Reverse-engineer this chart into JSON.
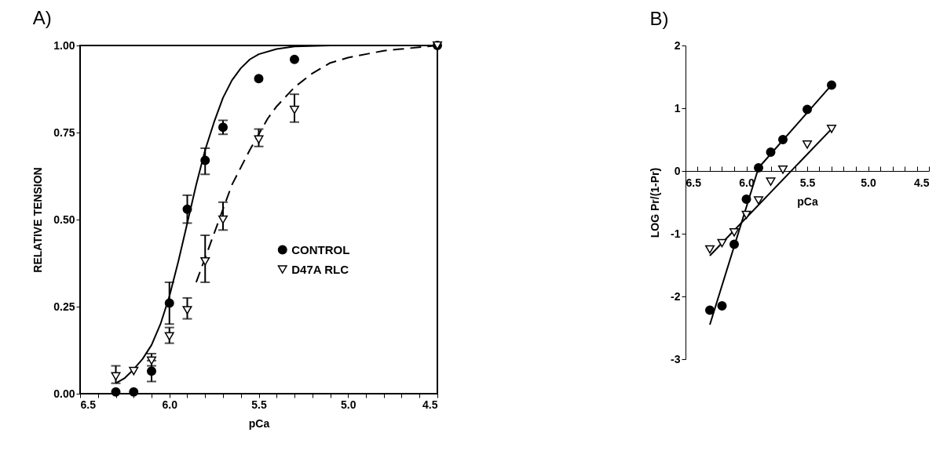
{
  "chart_data": [
    {
      "type": "scatter",
      "title": "A)",
      "xlabel": "pCa",
      "ylabel": "RELATIVE TENSION",
      "legend": "right",
      "xlim": [
        6.5,
        4.5
      ],
      "ylim": [
        0,
        1
      ],
      "xticks": [
        {
          "value": 6.5,
          "label": "6.5"
        },
        {
          "value": 6.4,
          "label": null
        },
        {
          "value": 6.3,
          "label": null
        },
        {
          "value": 6.2,
          "label": null
        },
        {
          "value": 6.1,
          "label": null
        },
        {
          "value": 6,
          "label": "6.0"
        },
        {
          "value": 5.9,
          "label": null
        },
        {
          "value": 5.8,
          "label": null
        },
        {
          "value": 5.7,
          "label": null
        },
        {
          "value": 5.6,
          "label": null
        },
        {
          "value": 5.5,
          "label": "5.5"
        },
        {
          "value": 5.4,
          "label": null
        },
        {
          "value": 5.3,
          "label": null
        },
        {
          "value": 5.2,
          "label": null
        },
        {
          "value": 5.1,
          "label": null
        },
        {
          "value": 5,
          "label": "5.0"
        },
        {
          "value": 4.9,
          "label": null
        },
        {
          "value": 4.8,
          "label": null
        },
        {
          "value": 4.7,
          "label": null
        },
        {
          "value": 4.6,
          "label": null
        },
        {
          "value": 4.5,
          "label": "4.5"
        }
      ],
      "yticks": [
        {
          "value": 0,
          "label": "0.00"
        },
        {
          "value": 0.25,
          "label": "0.25"
        },
        {
          "value": 0.5,
          "label": "0.50"
        },
        {
          "value": 0.75,
          "label": "0.75"
        },
        {
          "value": 1,
          "label": "1.00"
        }
      ],
      "series": [
        {
          "name": "CONTROL",
          "type": "scatter",
          "marker": "circle",
          "color": "#000000",
          "x": [
            6.3,
            6.2,
            6.1,
            6.0,
            5.9,
            5.8,
            5.7,
            5.5,
            5.3,
            4.5
          ],
          "values": [
            0.005,
            0.005,
            0.065,
            0.26,
            0.53,
            0.67,
            0.765,
            0.905,
            0.96,
            1.0
          ],
          "errors": [
            null,
            null,
            [
              0.035,
              0.095
            ],
            [
              0.2,
              0.32
            ],
            [
              0.49,
              0.57
            ],
            [
              0.63,
              0.705
            ],
            [
              0.745,
              0.785
            ],
            null,
            null,
            null
          ]
        },
        {
          "name": "D47A RLC",
          "type": "scatter",
          "marker": "triangle",
          "color": "#000000",
          "x": [
            6.3,
            6.2,
            6.1,
            6.0,
            5.9,
            5.8,
            5.7,
            5.5,
            5.3,
            4.5
          ],
          "values": [
            0.05,
            0.065,
            0.095,
            0.165,
            0.24,
            0.38,
            0.5,
            0.73,
            0.815,
            1.0
          ],
          "errors": [
            [
              0.03,
              0.08
            ],
            null,
            [
              0.08,
              0.115
            ],
            [
              0.145,
              0.19
            ],
            [
              0.215,
              0.275
            ],
            [
              0.32,
              0.455
            ],
            [
              0.47,
              0.55
            ],
            [
              0.71,
              0.76
            ],
            [
              0.78,
              0.86
            ],
            null
          ]
        },
        {
          "type": "line",
          "line_style": "solid",
          "color": "#000000",
          "x": [
            6.3,
            6.25,
            6.2,
            6.15,
            6.1,
            6.05,
            6.0,
            5.95,
            5.9,
            5.85,
            5.8,
            5.75,
            5.7,
            5.65,
            5.6,
            5.55,
            5.5,
            5.4,
            5.3,
            5.1,
            4.8,
            4.5
          ],
          "values": [
            0.03,
            0.045,
            0.07,
            0.1,
            0.14,
            0.2,
            0.28,
            0.38,
            0.49,
            0.6,
            0.7,
            0.78,
            0.85,
            0.9,
            0.935,
            0.96,
            0.975,
            0.99,
            0.997,
            1.0,
            1.0,
            1.0
          ]
        },
        {
          "type": "line",
          "line_style": "dashed",
          "color": "#000000",
          "x": [
            5.85,
            5.8,
            5.75,
            5.7,
            5.65,
            5.6,
            5.55,
            5.5,
            5.45,
            5.4,
            5.3,
            5.2,
            5.1,
            5.0,
            4.8,
            4.5
          ],
          "values": [
            0.32,
            0.39,
            0.46,
            0.53,
            0.6,
            0.65,
            0.7,
            0.745,
            0.79,
            0.825,
            0.88,
            0.92,
            0.95,
            0.965,
            0.985,
            1.0
          ]
        }
      ]
    },
    {
      "type": "scatter",
      "title": "B)",
      "xlabel": "pCa",
      "ylabel": "LOG Pr/(1-Pr)",
      "legend": "right",
      "xlim": [
        6.5,
        4.5
      ],
      "ylim": [
        -3,
        2
      ],
      "xticks": [
        {
          "value": 6.5,
          "label": "6.5"
        },
        {
          "value": 6.4,
          "label": null
        },
        {
          "value": 6.3,
          "label": null
        },
        {
          "value": 6.2,
          "label": null
        },
        {
          "value": 6.1,
          "label": null
        },
        {
          "value": 6,
          "label": "6.0"
        },
        {
          "value": 5.9,
          "label": null
        },
        {
          "value": 5.8,
          "label": null
        },
        {
          "value": 5.7,
          "label": null
        },
        {
          "value": 5.6,
          "label": null
        },
        {
          "value": 5.5,
          "label": "5.5"
        },
        {
          "value": 5.4,
          "label": null
        },
        {
          "value": 5.3,
          "label": null
        },
        {
          "value": 5.2,
          "label": null
        },
        {
          "value": 5.1,
          "label": null
        },
        {
          "value": 5,
          "label": "5.0"
        },
        {
          "value": 4.9,
          "label": null
        },
        {
          "value": 4.8,
          "label": null
        },
        {
          "value": 4.7,
          "label": null
        },
        {
          "value": 4.6,
          "label": null
        },
        {
          "value": 4.5,
          "label": "4.5"
        }
      ],
      "yticks": [
        -3,
        -2,
        -1,
        0,
        1,
        2
      ],
      "series": [
        {
          "name": "CONTROL",
          "type": "scatter",
          "marker": "circle",
          "color": "#000000",
          "x": [
            6.3,
            6.2,
            6.1,
            6.0,
            5.9,
            5.8,
            5.7,
            5.5,
            5.3
          ],
          "values": [
            -2.22,
            -2.15,
            -1.17,
            -0.45,
            0.05,
            0.3,
            0.5,
            0.98,
            1.37
          ]
        },
        {
          "name": "D47A RLC",
          "type": "scatter",
          "marker": "triangle",
          "color": "#000000",
          "x": [
            6.3,
            6.2,
            6.1,
            6.0,
            5.9,
            5.8,
            5.7,
            5.5,
            5.3
          ],
          "values": [
            -1.25,
            -1.15,
            -0.98,
            -0.7,
            -0.47,
            -0.17,
            0.02,
            0.42,
            0.67
          ]
        },
        {
          "type": "line",
          "line_style": "solid",
          "color": "#000000",
          "x": [
            6.3,
            5.9,
            5.3
          ],
          "values": [
            -2.45,
            0.05,
            1.37
          ]
        },
        {
          "type": "line",
          "line_style": "solid",
          "color": "#000000",
          "x": [
            6.3,
            5.3
          ],
          "values": [
            -1.35,
            0.67
          ]
        }
      ]
    }
  ]
}
